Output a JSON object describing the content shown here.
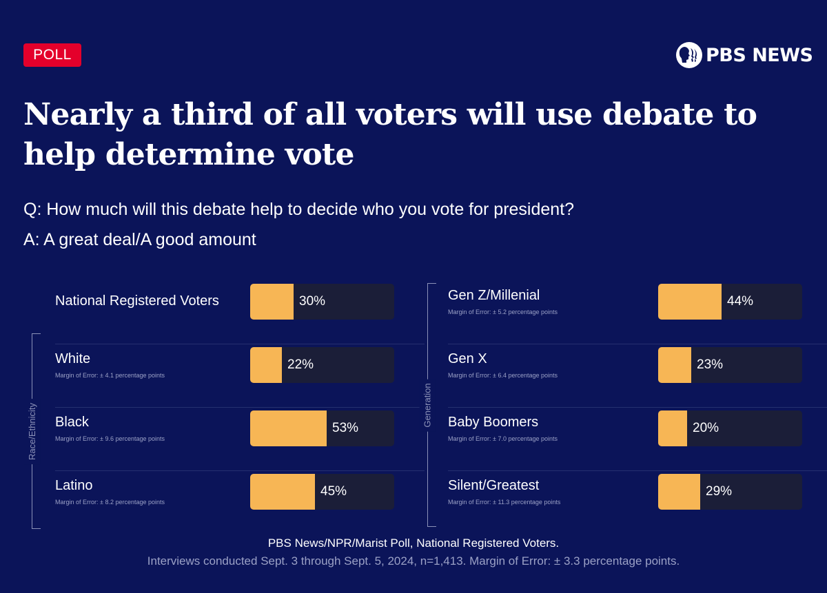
{
  "badge": "POLL",
  "brand": {
    "name": "PBS NEWS",
    "logo_icon": "pbs-heads-icon"
  },
  "title": "Nearly a third of all voters will use debate to help determine vote",
  "question": "Q: How much will this debate help to decide who you vote for president?",
  "answer": "A: A great deal/A good amount",
  "colors": {
    "background": "#0b1459",
    "bar_fill": "#f7b655",
    "bar_track": "#1b1e38",
    "badge": "#e4002b"
  },
  "footer": {
    "source": "PBS News/NPR/Marist Poll, National Registered Voters.",
    "note": "Interviews conducted Sept. 3 through Sept. 5, 2024, n=1,413. Margin of Error: ± 3.3 percentage points."
  },
  "chart_data": {
    "type": "bar",
    "orientation": "horizontal",
    "title": "Nearly a third of all voters will use debate to help determine vote",
    "xlabel": "",
    "ylabel": "",
    "xlim": [
      0,
      100
    ],
    "unit": "%",
    "grid": false,
    "legend": "none",
    "groups": [
      {
        "name": "",
        "bracket_label": "",
        "items": [
          {
            "label": "National Registered Voters",
            "value": 30,
            "value_label": "30%",
            "moe": ""
          }
        ]
      },
      {
        "name": "Race/Ethnicity",
        "bracket_label": "Race/Ethnicity",
        "items": [
          {
            "label": "White",
            "value": 22,
            "value_label": "22%",
            "moe": "Margin of Error: ± 4.1 percentage points"
          },
          {
            "label": "Black",
            "value": 53,
            "value_label": "53%",
            "moe": "Margin of Error: ± 9.6 percentage points"
          },
          {
            "label": "Latino",
            "value": 45,
            "value_label": "45%",
            "moe": "Margin of Error: ± 8.2 percentage points"
          }
        ]
      },
      {
        "name": "Generation",
        "bracket_label": "Generation",
        "items": [
          {
            "label": "Gen Z/Millenial",
            "value": 44,
            "value_label": "44%",
            "moe": "Margin of Error: ± 5.2 percentage points"
          },
          {
            "label": "Gen X",
            "value": 23,
            "value_label": "23%",
            "moe": "Margin of Error: ± 6.4 percentage points"
          },
          {
            "label": "Baby Boomers",
            "value": 20,
            "value_label": "20%",
            "moe": "Margin of Error: ± 7.0 percentage points"
          },
          {
            "label": "Silent/Greatest",
            "value": 29,
            "value_label": "29%",
            "moe": "Margin of Error: ± 11.3 percentage points"
          }
        ]
      }
    ]
  }
}
